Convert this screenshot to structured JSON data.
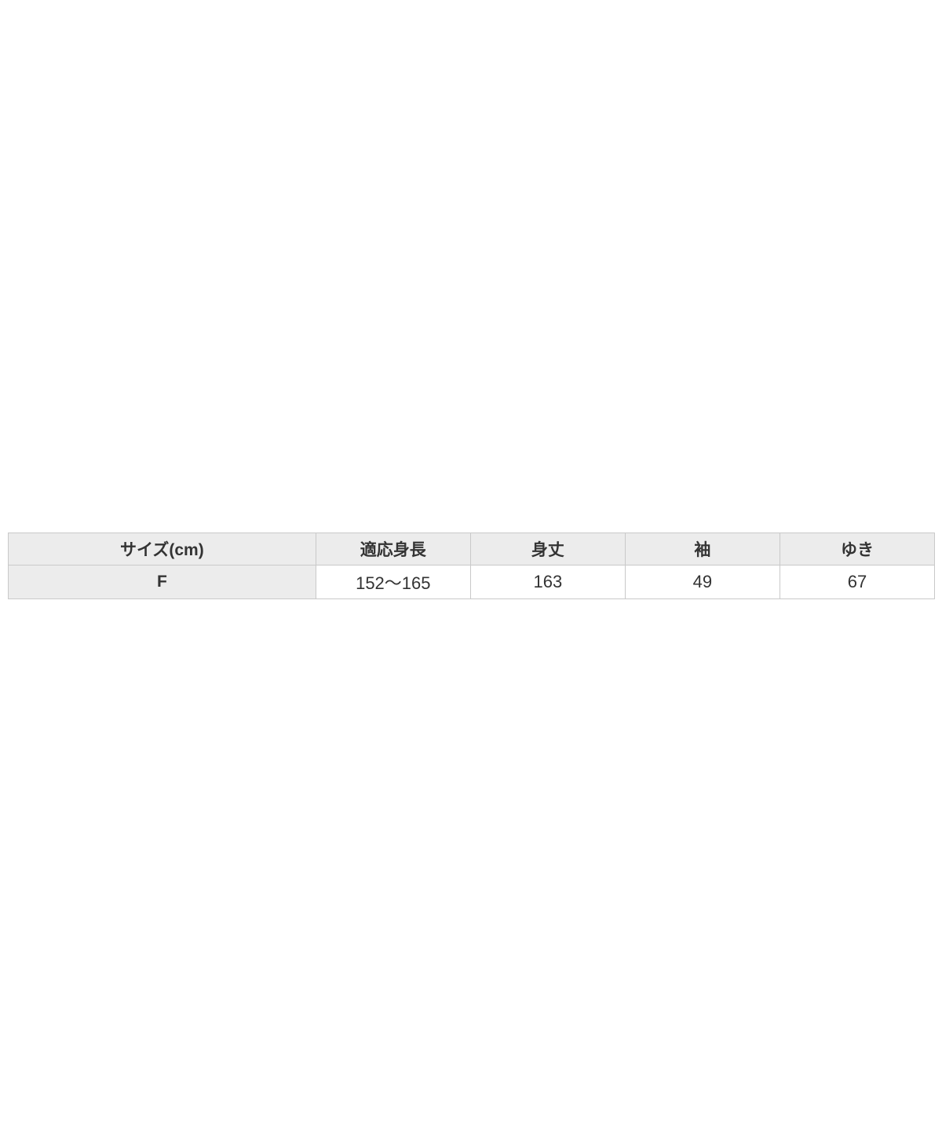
{
  "page": {
    "background": "#ffffff"
  },
  "size_table": {
    "columns": {
      "size": "サイズ(cm)",
      "height_range": "適応身長",
      "body_length": "身丈",
      "sleeve": "袖",
      "yuki": "ゆき"
    },
    "row_f": {
      "size": "F",
      "height_range": "152～165",
      "body_length": "163",
      "sleeve": "49",
      "yuki": "67"
    },
    "colors": {
      "header_bg": "#ececec",
      "border": "#c9c9c9",
      "text": "#333333",
      "cell_bg": "#ffffff"
    }
  }
}
